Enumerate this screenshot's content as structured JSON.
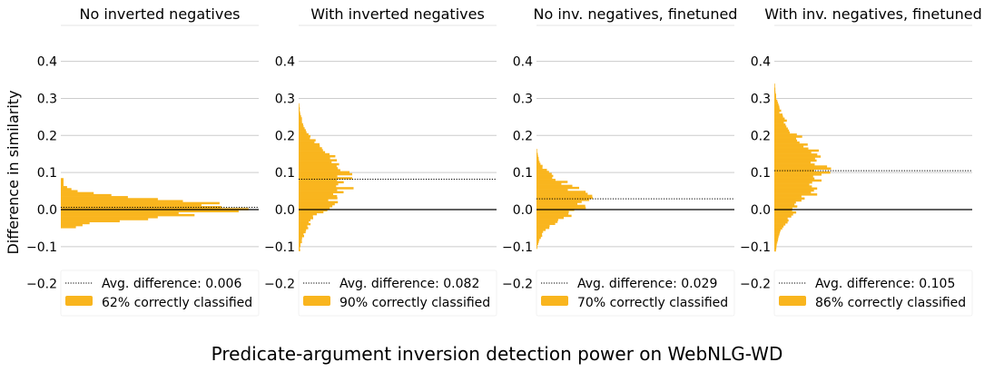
{
  "figure": {
    "suptitle": "Predicate-argument inversion detection power on WebNLG-WD",
    "ylabel": "Difference in similarity"
  },
  "colors": {
    "hist": "#f9b51e",
    "hist_edge": "#e8a00c",
    "ref_line": "#000000",
    "avg_line": "#000000",
    "grid": "#cccccc"
  },
  "chart_data": [
    {
      "type": "histogram",
      "orientation": "horizontal",
      "title": "No inverted negatives",
      "ylim": [
        -0.2,
        0.45
      ],
      "yticks": [
        "0.4",
        "0.3",
        "0.2",
        "0.1",
        "0.0",
        "−0.1",
        "−0.2"
      ],
      "grid": true,
      "avg_difference": 0.006,
      "legend": [
        "Avg. difference: 0.006",
        "62% correctly classified"
      ],
      "legend_position": "bottom-right",
      "distribution": {
        "mean": 0.006,
        "std": 0.022,
        "range": [
          -0.045,
          0.085
        ]
      }
    },
    {
      "type": "histogram",
      "orientation": "horizontal",
      "title": "With inverted negatives",
      "ylim": [
        -0.2,
        0.45
      ],
      "yticks": [
        "0.4",
        "0.3",
        "0.2",
        "0.1",
        "0.0",
        "−0.1",
        "−0.2"
      ],
      "grid": true,
      "avg_difference": 0.082,
      "legend": [
        "Avg. difference: 0.082",
        "90% correctly classified"
      ],
      "legend_position": "bottom-right",
      "distribution": {
        "mean": 0.082,
        "std": 0.07,
        "range": [
          -0.11,
          0.4
        ]
      }
    },
    {
      "type": "histogram",
      "orientation": "horizontal",
      "title": "No inv. negatives, finetuned",
      "ylim": [
        -0.2,
        0.45
      ],
      "yticks": [
        "0.4",
        "0.3",
        "0.2",
        "0.1",
        "0.0",
        "−0.1",
        "−0.2"
      ],
      "grid": true,
      "avg_difference": 0.029,
      "legend": [
        "Avg. difference: 0.029",
        "70% correctly classified"
      ],
      "legend_position": "bottom-right",
      "distribution": {
        "mean": 0.029,
        "std": 0.045,
        "range": [
          -0.13,
          0.18
        ]
      }
    },
    {
      "type": "histogram",
      "orientation": "horizontal",
      "title": "With inv. negatives, finetuned",
      "ylim": [
        -0.2,
        0.45
      ],
      "yticks": [
        "0.4",
        "0.3",
        "0.2",
        "0.1",
        "0.0",
        "−0.1",
        "−0.2"
      ],
      "grid": true,
      "avg_difference": 0.105,
      "legend": [
        "Avg. difference: 0.105",
        "86% correctly classified"
      ],
      "legend_position": "bottom-right",
      "distribution": {
        "mean": 0.105,
        "std": 0.08,
        "range": [
          -0.11,
          0.41
        ]
      }
    }
  ]
}
